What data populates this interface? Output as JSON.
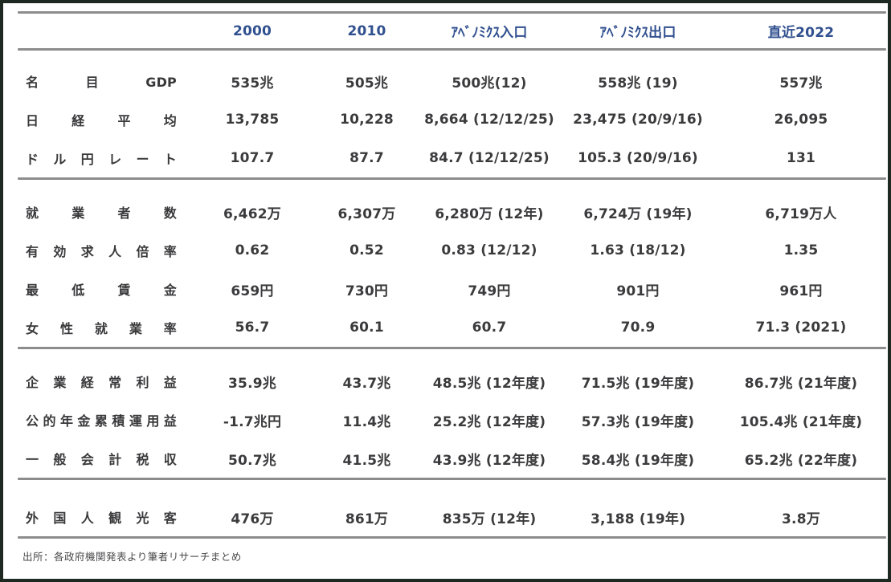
{
  "colors": {
    "header_text": "#31508f",
    "body_text": "#3b3b3d",
    "rule_gray": "#8c8c8c",
    "outer_border": "#1e2921"
  },
  "chart_data": {
    "type": "table",
    "columns": [
      "",
      "2000",
      "2010",
      "ｱﾍﾞﾉﾐｸｽ入口",
      "ｱﾍﾞﾉﾐｸｽ出口",
      "直近2022"
    ],
    "sections": [
      {
        "rows": [
          {
            "label": "名目GDP",
            "values": [
              "535兆",
              "505兆",
              "500兆(12)",
              "558兆 (19)",
              "557兆"
            ]
          },
          {
            "label": "日経平均",
            "values": [
              "13,785",
              "10,228",
              "8,664 (12/12/25)",
              "23,475 (20/9/16)",
              "26,095"
            ]
          },
          {
            "label": "ドル円レート",
            "values": [
              "107.7",
              "87.7",
              "84.7 (12/12/25)",
              "105.3 (20/9/16)",
              "131"
            ]
          }
        ]
      },
      {
        "rows": [
          {
            "label": "就業者数",
            "values": [
              "6,462万",
              "6,307万",
              "6,280万 (12年)",
              "6,724万 (19年)",
              "6,719万人"
            ]
          },
          {
            "label": "有効求人倍率",
            "values": [
              "0.62",
              "0.52",
              "0.83 (12/12)",
              "1.63 (18/12)",
              "1.35"
            ]
          },
          {
            "label": "最低賃金",
            "values": [
              "659円",
              "730円",
              "749円",
              "901円",
              "961円"
            ]
          },
          {
            "label": "女性就業率",
            "values": [
              "56.7",
              "60.1",
              "60.7",
              "70.9",
              "71.3 (2021)"
            ]
          }
        ]
      },
      {
        "rows": [
          {
            "label": "企業経常利益",
            "values": [
              "35.9兆",
              "43.7兆",
              "48.5兆 (12年度)",
              "71.5兆 (19年度)",
              "86.7兆 (21年度)"
            ]
          },
          {
            "label": "公的年金累積運用益",
            "values": [
              "-1.7兆円",
              "11.4兆",
              "25.2兆 (12年度)",
              "57.3兆 (19年度)",
              "105.4兆 (21年度)"
            ]
          },
          {
            "label": "一般会計税収",
            "values": [
              "50.7兆",
              "41.5兆",
              "43.9兆 (12年度)",
              "58.4兆 (19年度)",
              "65.2兆 (22年度)"
            ]
          }
        ]
      },
      {
        "rows": [
          {
            "label": "外国人観光客",
            "values": [
              "476万",
              "861万",
              "835万 (12年)",
              "3,188 (19年)",
              "3.8万"
            ]
          }
        ]
      }
    ]
  },
  "footer": {
    "source": "出所：各政府機関発表より筆者リサーチまとめ"
  }
}
